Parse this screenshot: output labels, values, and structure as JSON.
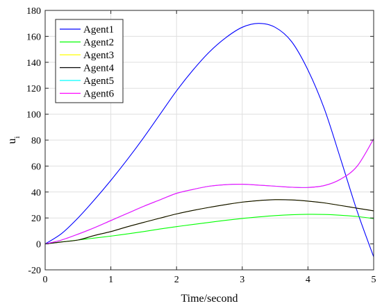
{
  "chart_data": {
    "type": "line",
    "xlabel": "Time/second",
    "ylabel": "u",
    "ylabel_subscript": "i",
    "xlim": [
      0,
      5
    ],
    "ylim": [
      -20,
      180
    ],
    "xticks": [
      "0",
      "1",
      "2",
      "3",
      "4",
      "5"
    ],
    "yticks": [
      "-20",
      "0",
      "20",
      "40",
      "60",
      "80",
      "100",
      "120",
      "140",
      "160",
      "180"
    ],
    "grid": true,
    "legend_position": "top-left",
    "x": [
      0,
      0.25,
      0.5,
      0.75,
      1.0,
      1.25,
      1.5,
      1.75,
      2.0,
      2.25,
      2.5,
      2.75,
      3.0,
      3.25,
      3.5,
      3.75,
      4.0,
      4.25,
      4.5,
      4.75,
      5.0
    ],
    "series": [
      {
        "name": "Agent1",
        "color": "#0000ff",
        "values": [
          0,
          8,
          20,
          34,
          49,
          65,
          82,
          100,
          118,
          134,
          148,
          159,
          167,
          170,
          167,
          156,
          134,
          104,
          65,
          25,
          -10
        ]
      },
      {
        "name": "Agent2",
        "color": "#00ff00",
        "values": [
          0,
          1.5,
          3,
          4.5,
          6,
          7.7,
          9.5,
          11.5,
          13.3,
          15,
          16.6,
          18.2,
          19.6,
          20.8,
          21.8,
          22.5,
          22.8,
          22.7,
          22.1,
          21.1,
          19.5
        ]
      },
      {
        "name": "Agent3",
        "color": "#ffff00",
        "values": [
          0,
          1.5,
          3,
          6.5,
          9.5,
          13.2,
          16.6,
          19.9,
          23.1,
          25.8,
          28.2,
          30.3,
          32.2,
          33.4,
          34.1,
          33.9,
          33.0,
          31.6,
          29.6,
          27.5,
          25.5
        ]
      },
      {
        "name": "Agent4",
        "color": "#000000",
        "values": [
          0,
          1.5,
          3,
          6.5,
          9.5,
          13.2,
          16.6,
          19.9,
          23.1,
          25.8,
          28.2,
          30.3,
          32.2,
          33.4,
          34.1,
          33.9,
          33.0,
          31.6,
          29.6,
          27.5,
          25.5
        ]
      },
      {
        "name": "Agent5",
        "color": "#00ffff",
        "values": [
          0,
          3,
          7.5,
          12.5,
          18,
          23.5,
          29,
          34,
          39,
          42,
          44.5,
          45.7,
          46,
          45.3,
          44.5,
          43.7,
          43.5,
          45,
          50,
          60,
          81
        ]
      },
      {
        "name": "Agent6",
        "color": "#ff00ff",
        "values": [
          0,
          3,
          7.5,
          12.5,
          18,
          23.5,
          29,
          34,
          39,
          42,
          44.5,
          45.7,
          46,
          45.3,
          44.5,
          43.7,
          43.5,
          45,
          50,
          60,
          81
        ]
      }
    ]
  }
}
